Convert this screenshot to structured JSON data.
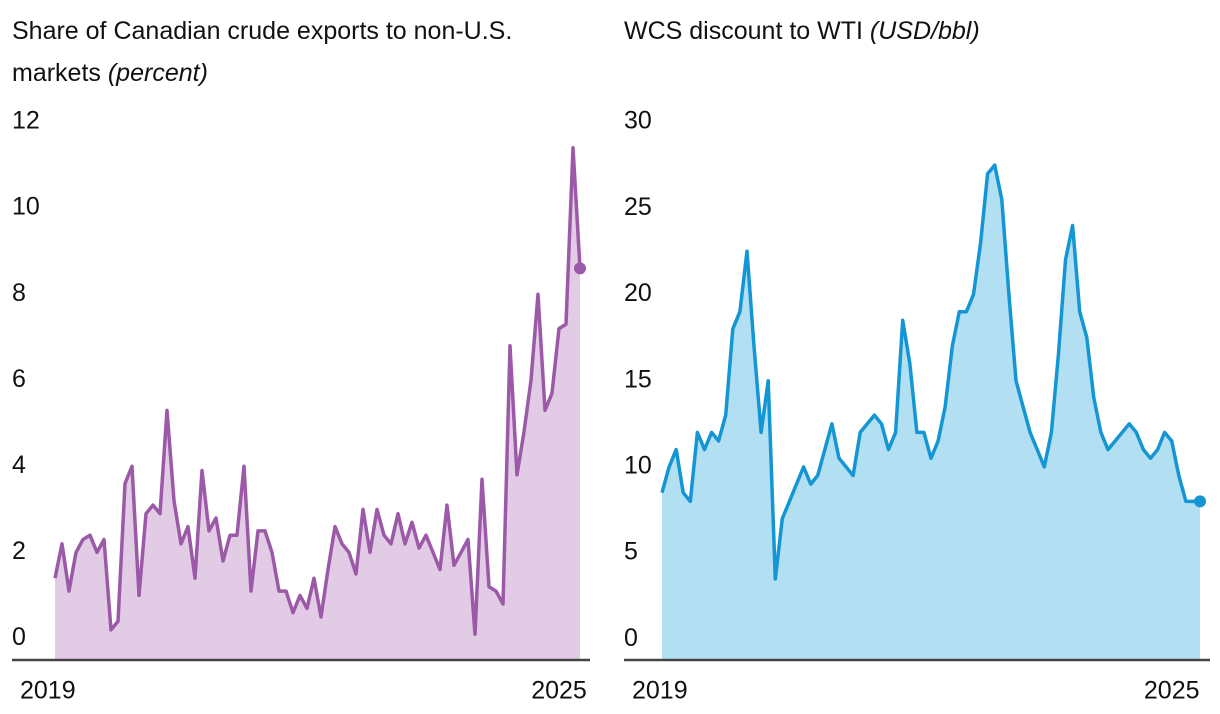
{
  "chart_data": [
    {
      "type": "area",
      "title": "Share of Canadian crude exports to non-U.S. markets",
      "unit": "(percent)",
      "color": "#9b59a8",
      "fill": "#e2cce5",
      "xlim": [
        2019,
        2025.25
      ],
      "xticks": [
        2019,
        2025
      ],
      "ylim": [
        -0.5,
        12
      ],
      "yticks": [
        0,
        2,
        4,
        6,
        8,
        10,
        12
      ],
      "series": [
        {
          "values": [
            1.4,
            2.2,
            1.1,
            2.0,
            2.3,
            2.4,
            2.0,
            2.3,
            0.2,
            0.4,
            3.6,
            4.0,
            1.0,
            2.9,
            3.1,
            2.9,
            5.3,
            3.2,
            2.2,
            2.6,
            1.4,
            3.9,
            2.5,
            2.8,
            1.8,
            2.4,
            2.4,
            4.0,
            1.1,
            2.5,
            2.5,
            2.0,
            1.1,
            1.1,
            0.6,
            1.0,
            0.7,
            1.4,
            0.5,
            1.6,
            2.6,
            2.2,
            2.0,
            1.5,
            3.0,
            2.0,
            3.0,
            2.4,
            2.2,
            2.9,
            2.2,
            2.7,
            2.1,
            2.4,
            2.0,
            1.6,
            3.1,
            1.7,
            2.0,
            2.3,
            0.1,
            3.7,
            1.2,
            1.1,
            0.8,
            6.8,
            3.8,
            4.8,
            6.0,
            8.0,
            5.3,
            5.7,
            7.2,
            7.3,
            11.4,
            8.6
          ]
        }
      ]
    },
    {
      "type": "area",
      "title": "WCS discount to WTI",
      "unit": "(USD/bbl)",
      "color": "#1496d4",
      "fill": "#b3dff3",
      "xlim": [
        2019,
        2025.333
      ],
      "xticks": [
        2019,
        2025
      ],
      "ylim": [
        -1.2,
        30
      ],
      "yticks": [
        0,
        5,
        10,
        15,
        20,
        25,
        30
      ],
      "series": [
        {
          "values": [
            8.5,
            10,
            11,
            8.5,
            8,
            12,
            11,
            12,
            11.5,
            13,
            18,
            19,
            22.5,
            17,
            12,
            15,
            3.5,
            7,
            8,
            9,
            10,
            9,
            9.5,
            11,
            12.5,
            10.5,
            10,
            9.5,
            12,
            12.5,
            13,
            12.5,
            11,
            12,
            18.5,
            16,
            12,
            12,
            10.5,
            11.5,
            13.5,
            17,
            19,
            19,
            20,
            23,
            27,
            27.5,
            25.5,
            20,
            15,
            13.5,
            12,
            11,
            10,
            12,
            16.5,
            22,
            24,
            19,
            17.5,
            14,
            12,
            11,
            11.5,
            12,
            12.5,
            12,
            11,
            10.5,
            11,
            12,
            11.5,
            9.5,
            8,
            8,
            8
          ]
        }
      ]
    }
  ]
}
